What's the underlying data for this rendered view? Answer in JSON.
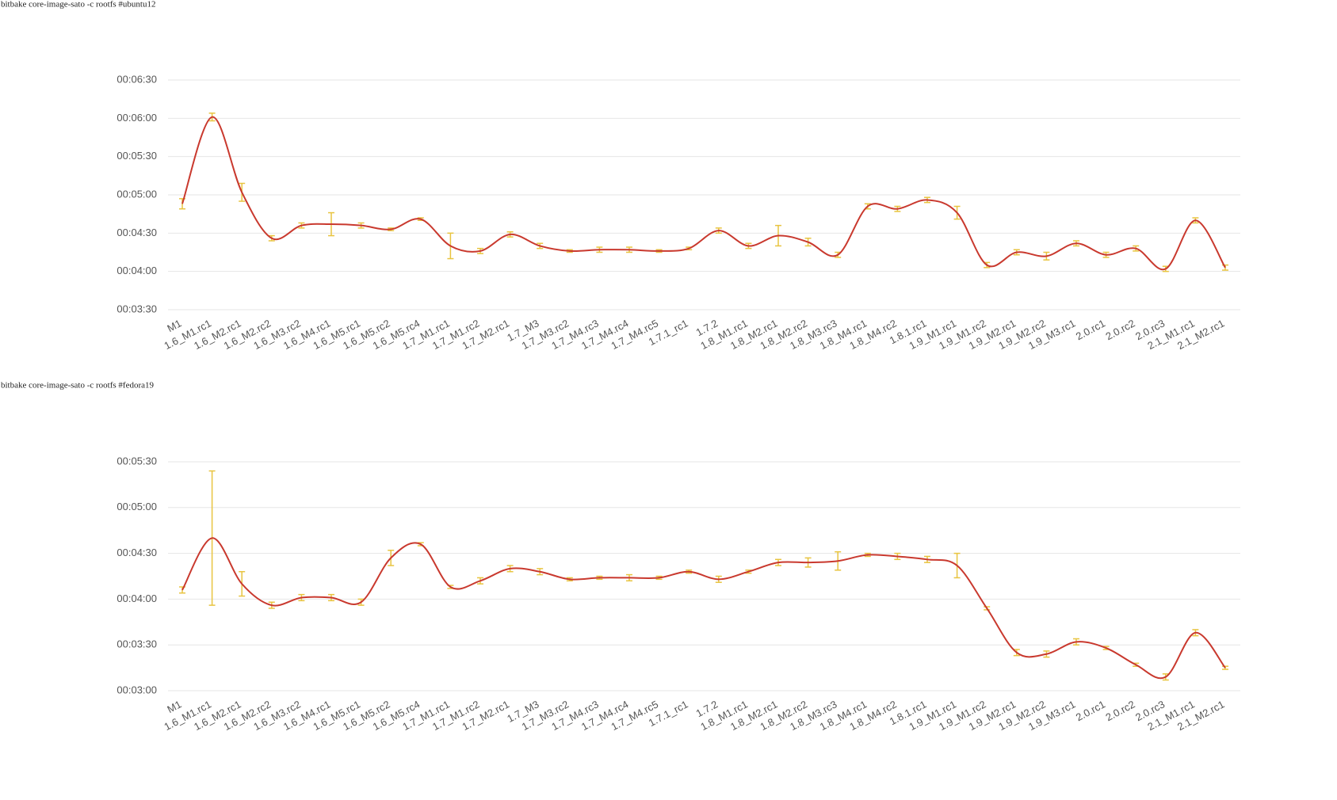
{
  "chart_data": [
    {
      "type": "line",
      "title": "bitbake core-image-sato -c rootfs #ubuntu12",
      "categories": [
        "M1",
        "1.6_M1.rc1",
        "1.6_M2.rc1",
        "1.6_M2.rc2",
        "1.6_M3.rc2",
        "1.6_M4.rc1",
        "1.6_M5.rc1",
        "1.6_M5.rc2",
        "1.6_M5.rc4",
        "1.7_M1.rc1",
        "1.7_M1.rc2",
        "1.7_M2.rc1",
        "1.7_M3",
        "1.7_M3.rc2",
        "1.7_M4.rc3",
        "1.7_M4.rc4",
        "1.7_M4.rc5",
        "1.7.1_rc1",
        "1.7.2",
        "1.8_M1.rc1",
        "1.8_M2.rc1",
        "1.8_M2.rc2",
        "1.8_M3.rc3",
        "1.8_M4.rc1",
        "1.8_M4.rc2",
        "1.8.1.rc1",
        "1.9_M1.rc1",
        "1.9_M1.rc2",
        "1.9_M2.rc1",
        "1.9_M2.rc2",
        "1.9_M3.rc1",
        "2.0.rc1",
        "2.0.rc2",
        "2.0.rc3",
        "2.1_M1.rc1",
        "2.1_M2.rc1"
      ],
      "series": [
        {
          "color": "#c9392e",
          "error_color": "#e8c440",
          "values": [
            293,
            361,
            302,
            266,
            276,
            277,
            276,
            273,
            281,
            260,
            256,
            269,
            260,
            256,
            257,
            257,
            256,
            258,
            272,
            260,
            268,
            263,
            253,
            291,
            289,
            296,
            286,
            245,
            255,
            252,
            262,
            253,
            258,
            242,
            280,
            243
          ],
          "errors": [
            4,
            3,
            7,
            2,
            2,
            9,
            2,
            1,
            1,
            10,
            2,
            2,
            2,
            1,
            2,
            2,
            1,
            1,
            2,
            2,
            8,
            3,
            2,
            2,
            2,
            2,
            5,
            2,
            2,
            3,
            2,
            2,
            2,
            2,
            2,
            2
          ]
        }
      ],
      "ylim": [
        210,
        390
      ],
      "yticks": [
        {
          "value": 210,
          "label": "00:03:30"
        },
        {
          "value": 240,
          "label": "00:04:00"
        },
        {
          "value": 270,
          "label": "00:04:30"
        },
        {
          "value": 300,
          "label": "00:05:00"
        },
        {
          "value": 330,
          "label": "00:05:30"
        },
        {
          "value": 360,
          "label": "00:06:00"
        },
        {
          "value": 390,
          "label": "00:06:30"
        }
      ],
      "grid": true
    },
    {
      "type": "line",
      "title": "bitbake core-image-sato -c rootfs #fedora19",
      "categories": [
        "M1",
        "1.6_M1.rc1",
        "1.6_M2.rc1",
        "1.6_M2.rc2",
        "1.6_M3.rc2",
        "1.6_M4.rc1",
        "1.6_M5.rc1",
        "1.6_M5.rc2",
        "1.6_M5.rc4",
        "1.7_M1.rc1",
        "1.7_M1.rc2",
        "1.7_M2.rc1",
        "1.7_M3",
        "1.7_M3.rc2",
        "1.7_M4.rc3",
        "1.7_M4.rc4",
        "1.7_M4.rc5",
        "1.7.1_rc1",
        "1.7.2",
        "1.8_M1.rc1",
        "1.8_M2.rc1",
        "1.8_M2.rc2",
        "1.8_M3.rc3",
        "1.8_M4.rc1",
        "1.8_M4.rc2",
        "1.8.1.rc1",
        "1.9_M1.rc1",
        "1.9_M1.rc2",
        "1.9_M2.rc1",
        "1.9_M2.rc2",
        "1.9_M3.rc1",
        "2.0.rc1",
        "2.0.rc2",
        "2.0.rc3",
        "2.1_M1.rc1",
        "2.1_M2.rc1"
      ],
      "series": [
        {
          "color": "#c9392e",
          "error_color": "#e8c440",
          "values": [
            246,
            280,
            250,
            236,
            241,
            241,
            238,
            267,
            276,
            248,
            252,
            260,
            258,
            253,
            254,
            254,
            254,
            258,
            253,
            258,
            264,
            264,
            265,
            269,
            268,
            266,
            262,
            234,
            205,
            204,
            212,
            208,
            197,
            189,
            218,
            195
          ],
          "errors": [
            2,
            44,
            8,
            2,
            2,
            2,
            2,
            5,
            1,
            1,
            2,
            2,
            2,
            1,
            1,
            2,
            1,
            1,
            2,
            1,
            2,
            3,
            6,
            1,
            2,
            2,
            8,
            1,
            2,
            2,
            2,
            1,
            1,
            2,
            2,
            1
          ]
        }
      ],
      "ylim": [
        180,
        330
      ],
      "yticks": [
        {
          "value": 180,
          "label": "00:03:00"
        },
        {
          "value": 210,
          "label": "00:03:30"
        },
        {
          "value": 240,
          "label": "00:04:00"
        },
        {
          "value": 270,
          "label": "00:04:30"
        },
        {
          "value": 300,
          "label": "00:05:00"
        },
        {
          "value": 330,
          "label": "00:05:30"
        }
      ],
      "grid": true
    }
  ]
}
